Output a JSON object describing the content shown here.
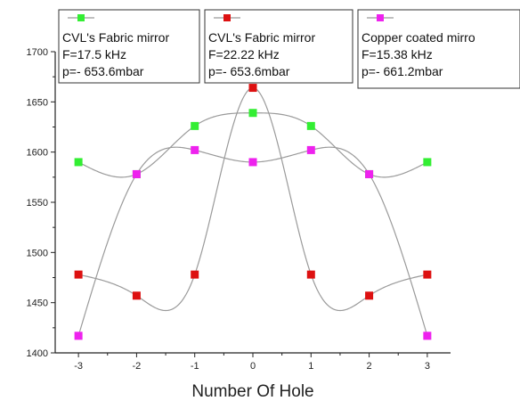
{
  "chart_data": {
    "type": "scatter",
    "title": "",
    "xlabel": "Number Of Hole",
    "ylabel": "",
    "xlim": [
      -3.4,
      3.4
    ],
    "ylim": [
      1400,
      1700
    ],
    "x": [
      -3,
      -2,
      -1,
      0,
      1,
      2,
      3
    ],
    "xticks": [
      "-3",
      "-2",
      "-1",
      "0",
      "1",
      "2",
      "3"
    ],
    "yticks": [
      "1400",
      "1450",
      "1500",
      "1550",
      "1600",
      "1650",
      "1700"
    ],
    "grid": false,
    "legend": "top",
    "series": [
      {
        "label_lines": [
          "CVL's Fabric mirror",
          "F=17.5 kHz",
          "p=- 653.6mbar"
        ],
        "color": "#33ee33",
        "values": [
          1590,
          1578,
          1626,
          1639,
          1626,
          1578,
          1590
        ]
      },
      {
        "label_lines": [
          "CVL's Fabric mirror",
          "F=22.22 kHz",
          "p=- 653.6mbar"
        ],
        "color": "#dd1111",
        "values": [
          1478,
          1457,
          1478,
          1664,
          1478,
          1457,
          1478
        ]
      },
      {
        "label_lines": [
          "Copper coated mirro",
          "F=15.38 kHz",
          "p=- 661.2mbar"
        ],
        "color": "#ee22ee",
        "values": [
          1417,
          1578,
          1602,
          1590,
          1602,
          1578,
          1417
        ]
      }
    ]
  }
}
